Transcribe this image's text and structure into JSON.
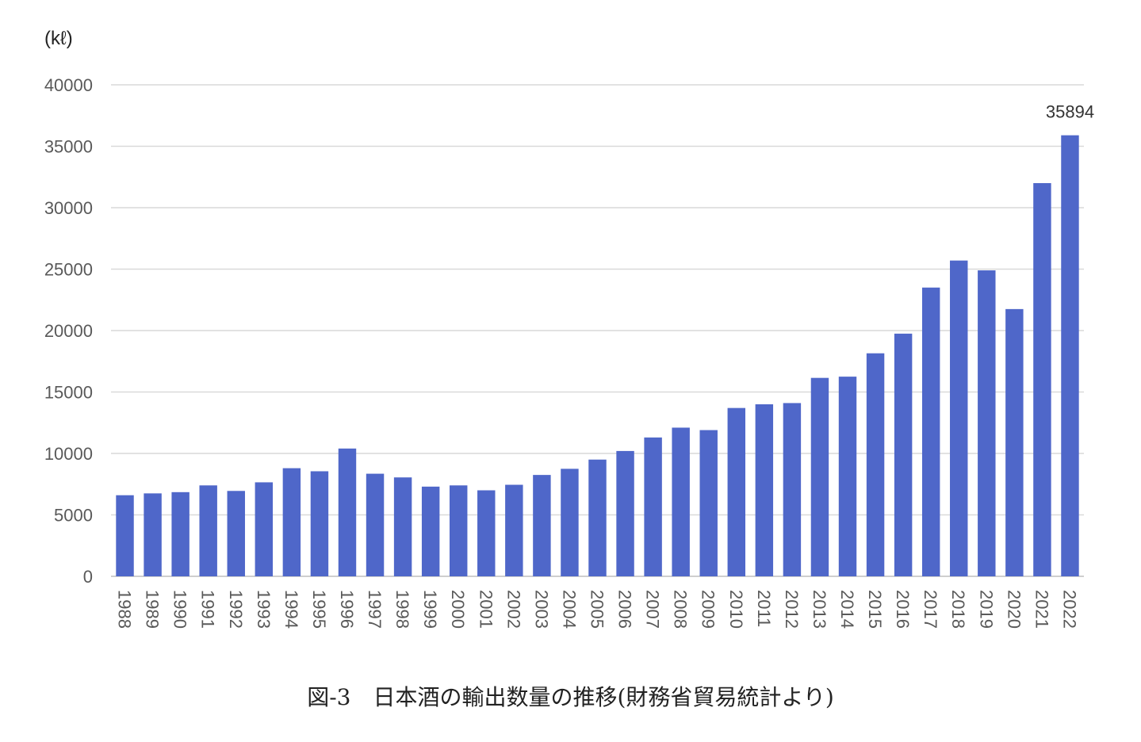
{
  "caption": "図-3　日本酒の輸出数量の推移(財務省貿易統計より)",
  "chart_data": {
    "type": "bar",
    "unit_label": "(kℓ)",
    "ylim": [
      0,
      40000
    ],
    "yticks": [
      0,
      5000,
      10000,
      15000,
      20000,
      25000,
      30000,
      35000,
      40000
    ],
    "grid": true,
    "bar_color": "#4f67c9",
    "categories": [
      "1988",
      "1989",
      "1990",
      "1991",
      "1992",
      "1993",
      "1994",
      "1995",
      "1996",
      "1997",
      "1998",
      "1999",
      "2000",
      "2001",
      "2002",
      "2003",
      "2004",
      "2005",
      "2006",
      "2007",
      "2008",
      "2009",
      "2010",
      "2011",
      "2012",
      "2013",
      "2014",
      "2015",
      "2016",
      "2017",
      "2018",
      "2019",
      "2020",
      "2021",
      "2022"
    ],
    "values": [
      6600,
      6750,
      6850,
      7400,
      6950,
      7650,
      8800,
      8550,
      10400,
      8350,
      8050,
      7300,
      7400,
      7000,
      7450,
      8250,
      8750,
      9500,
      10200,
      11300,
      12100,
      11900,
      13700,
      14000,
      14100,
      16150,
      16250,
      18150,
      19750,
      23500,
      25700,
      24900,
      21750,
      32000,
      35894
    ],
    "data_labels": [
      {
        "category": "2022",
        "text": "35894"
      }
    ]
  }
}
